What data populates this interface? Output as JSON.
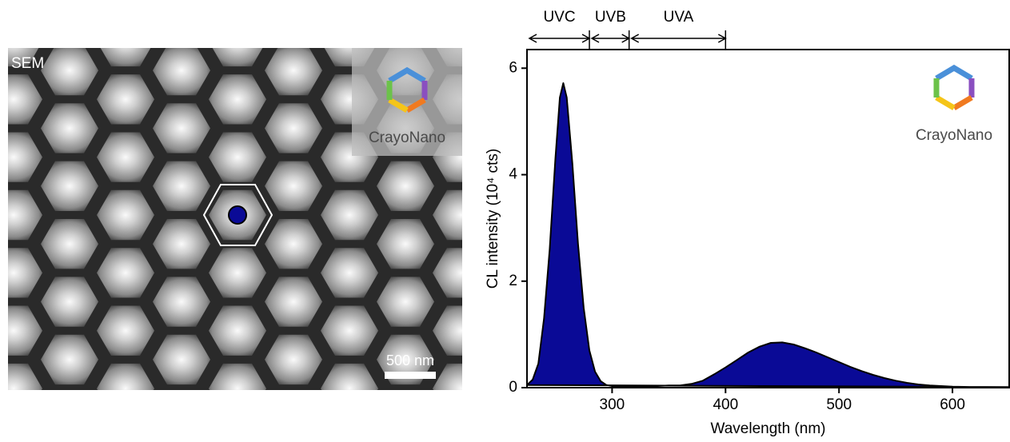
{
  "sem": {
    "label": "SEM",
    "scale_bar": "500 nm",
    "logo": "CrayoNano"
  },
  "chart_data": {
    "type": "area",
    "x_label": "Wavelength (nm)",
    "y_label": "CL intensity (10⁴ cts)",
    "logo": "CrayoNano",
    "bands": [
      {
        "name": "UVC",
        "range": [
          225,
          280
        ]
      },
      {
        "name": "UVB",
        "range": [
          280,
          315
        ]
      },
      {
        "name": "UVA",
        "range": [
          315,
          400
        ]
      }
    ],
    "x": [
      225,
      230,
      235,
      240,
      245,
      250,
      254,
      257,
      260,
      265,
      270,
      275,
      280,
      285,
      290,
      295,
      300,
      310,
      320,
      330,
      340,
      350,
      360,
      370,
      380,
      390,
      400,
      410,
      420,
      430,
      440,
      450,
      460,
      470,
      480,
      490,
      500,
      510,
      520,
      530,
      540,
      550,
      560,
      570,
      580,
      590,
      600,
      620,
      650
    ],
    "values": [
      0.05,
      0.15,
      0.45,
      1.3,
      2.6,
      4.3,
      5.45,
      5.72,
      5.45,
      4.2,
      2.7,
      1.5,
      0.7,
      0.3,
      0.12,
      0.05,
      0.03,
      0.02,
      0.02,
      0.02,
      0.03,
      0.04,
      0.04,
      0.07,
      0.13,
      0.25,
      0.38,
      0.52,
      0.66,
      0.77,
      0.84,
      0.85,
      0.81,
      0.74,
      0.66,
      0.57,
      0.48,
      0.39,
      0.31,
      0.24,
      0.18,
      0.13,
      0.09,
      0.06,
      0.04,
      0.03,
      0.02,
      0.01,
      0.01
    ],
    "color": "#0a0a96",
    "xlim": [
      225,
      650
    ],
    "xticks": [
      300,
      400,
      500,
      600
    ],
    "ylim": [
      0,
      6.35
    ],
    "yticks": [
      0,
      2,
      4,
      6
    ]
  }
}
